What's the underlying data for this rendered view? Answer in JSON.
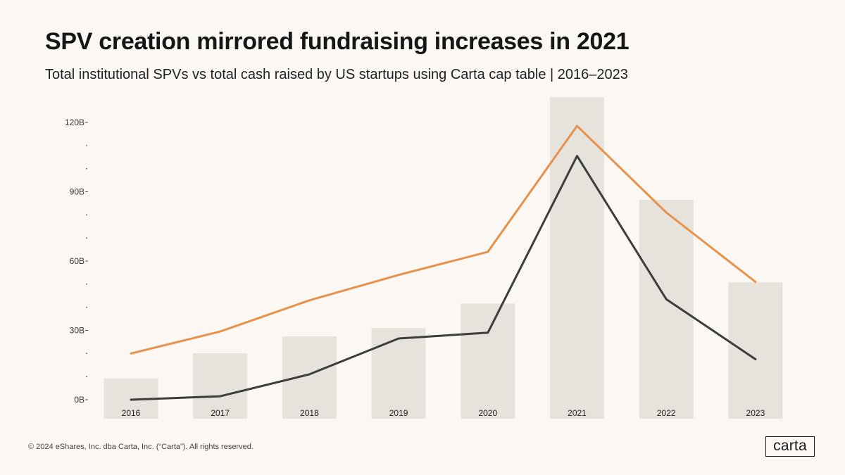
{
  "title": "SPV creation mirrored fundraising increases in 2021",
  "subtitle": "Total institutional SPVs vs total cash raised by US startups using Carta cap table | 2016–2023",
  "footer": "© 2024 eShares, Inc. dba Carta, Inc. (“Carta”). All rights reserved.",
  "logo_text": "carta",
  "colors": {
    "bars": "#e6e2dc",
    "line_orange": "#e8914a",
    "line_dark": "#3d3d3d",
    "axis_text": "#333333"
  },
  "chart_data": {
    "type": "bar",
    "title": "SPV creation mirrored fundraising increases in 2021",
    "categories": [
      "2016",
      "2017",
      "2018",
      "2019",
      "2020",
      "2021",
      "2022",
      "2023"
    ],
    "ylim": [
      0,
      120
    ],
    "yticks": [
      {
        "value": 120,
        "label": "120B"
      },
      {
        "value": 90,
        "label": "90B"
      },
      {
        "value": 60,
        "label": "60B"
      },
      {
        "value": 30,
        "label": "30B"
      },
      {
        "value": 0,
        "label": "0B"
      }
    ],
    "minor_ticks": [
      10,
      20,
      40,
      50,
      70,
      80,
      100,
      110
    ],
    "bars": {
      "name": "Total institutional SPVs",
      "values": [
        9.2,
        20.1,
        27.4,
        31.0,
        41.6,
        131.0,
        86.5,
        50.8
      ]
    },
    "series": [
      {
        "name": "Cash raised (orange)",
        "values": [
          20,
          29.5,
          43,
          54,
          64,
          118.5,
          81,
          51
        ]
      },
      {
        "name": "Cash raised (dark)",
        "values": [
          0,
          1.5,
          11,
          26.5,
          29,
          105.5,
          43.5,
          17.5
        ]
      }
    ]
  }
}
